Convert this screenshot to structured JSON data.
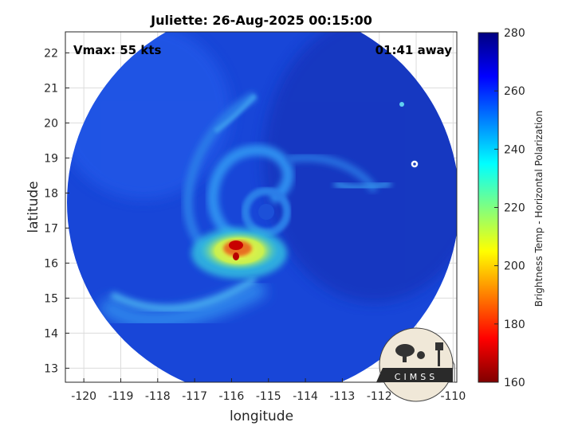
{
  "title": "Juliette: 26-Aug-2025 00:15:00",
  "vmax_label": "Vmax: 55 kts",
  "time_away_label": "01:41 away",
  "axes": {
    "xlabel": "longitude",
    "ylabel": "latitude",
    "x_ticks": [
      "-120",
      "-119",
      "-118",
      "-117",
      "-116",
      "-115",
      "-114",
      "-113",
      "-112",
      "-111",
      "-110"
    ],
    "y_ticks": [
      "22",
      "21",
      "20",
      "19",
      "18",
      "17",
      "16",
      "15",
      "14",
      "13"
    ],
    "xlim": [
      -120.5,
      -109.9
    ],
    "ylim": [
      12.6,
      22.6
    ],
    "grid": true
  },
  "colorbar": {
    "label": "Brightness Temp - Horizontal Polarization",
    "ticks": [
      "280",
      "260",
      "240",
      "220",
      "200",
      "180",
      "160"
    ],
    "range": [
      160,
      280
    ],
    "colormap": "jet"
  },
  "storm_center": {
    "lon": -115.2,
    "lat": 17.0
  },
  "logo_text": "CIMSS",
  "colors": {
    "background_blue": "#1846d8",
    "eyewall_yellow": "#f0e020",
    "core_red": "#c80000",
    "rainband_cyan": "#30a8f0"
  }
}
